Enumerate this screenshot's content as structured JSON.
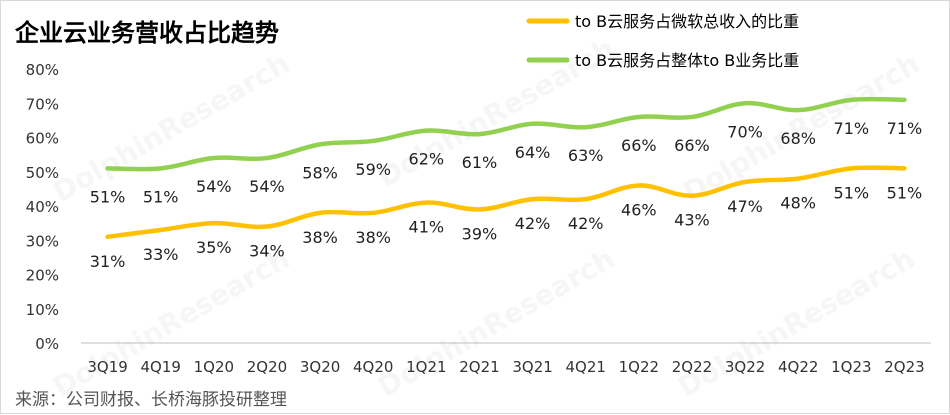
{
  "chart_data": {
    "type": "line",
    "title": "企业云业务营收占比趋势",
    "categories": [
      "3Q19",
      "4Q19",
      "1Q20",
      "2Q20",
      "3Q20",
      "4Q20",
      "1Q21",
      "2Q21",
      "3Q21",
      "4Q21",
      "1Q22",
      "2Q22",
      "3Q22",
      "4Q22",
      "1Q23",
      "2Q23"
    ],
    "series": [
      {
        "name": "to B云服务占微软总收入的比重",
        "color": "#FFC000",
        "values": [
          31,
          33,
          35,
          34,
          38,
          38,
          41,
          39,
          42,
          42,
          46,
          43,
          47,
          48,
          51,
          51
        ],
        "labels": [
          "31%",
          "33%",
          "35%",
          "34%",
          "38%",
          "38%",
          "41%",
          "39%",
          "42%",
          "42%",
          "46%",
          "43%",
          "47%",
          "48%",
          "51%",
          "51%"
        ]
      },
      {
        "name": "to B云服务占整体to B业务比重",
        "color": "#92D050",
        "values": [
          51,
          51,
          54,
          54,
          58,
          59,
          62,
          61,
          64,
          63,
          66,
          66,
          70,
          68,
          71,
          71
        ],
        "labels": [
          "51%",
          "51%",
          "54%",
          "54%",
          "58%",
          "59%",
          "62%",
          "61%",
          "64%",
          "63%",
          "66%",
          "66%",
          "70%",
          "68%",
          "71%",
          "71%"
        ]
      }
    ],
    "ylim": [
      0,
      80
    ],
    "yticks": [
      "0%",
      "10%",
      "20%",
      "30%",
      "40%",
      "50%",
      "60%",
      "70%",
      "80%"
    ],
    "grid": false,
    "legend_position": "top-right",
    "source": "来源：公司财报、长桥海豚投研整理",
    "watermark": "DolphinResearch"
  }
}
